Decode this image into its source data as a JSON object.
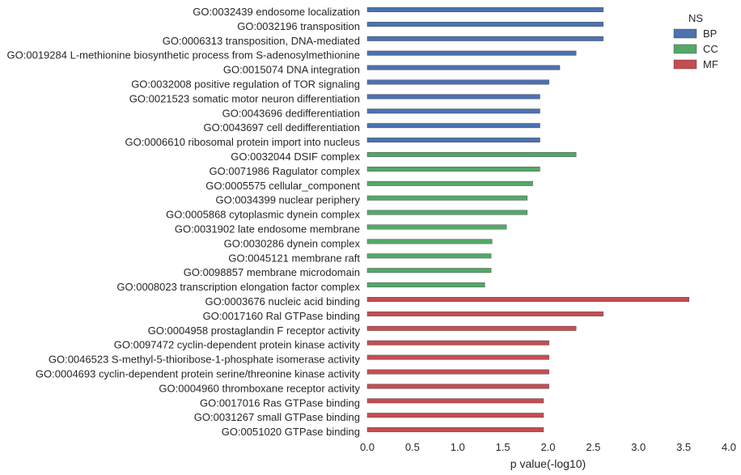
{
  "chart_data": {
    "type": "bar",
    "orientation": "horizontal",
    "xlabel": "p value(-log10)",
    "xlim": [
      0,
      4
    ],
    "xticks": [
      "0.0",
      "0.5",
      "1.0",
      "1.5",
      "2.0",
      "2.5",
      "3.0",
      "3.5",
      "4.0"
    ],
    "grid": false,
    "legend": {
      "title": "NS",
      "placement": "top-right",
      "entries": [
        {
          "name": "BP",
          "color": "#4c72b0"
        },
        {
          "name": "CC",
          "color": "#55a868"
        },
        {
          "name": "MF",
          "color": "#c44e52"
        }
      ]
    },
    "categories": [
      {
        "label": "GO:0032439 endosome localization",
        "value": 2.61,
        "ns": "BP"
      },
      {
        "label": "GO:0032196 transposition",
        "value": 2.61,
        "ns": "BP"
      },
      {
        "label": "GO:0006313 transposition, DNA-mediated",
        "value": 2.61,
        "ns": "BP"
      },
      {
        "label": "GO:0019284 L-methionine biosynthetic process from S-adenosylmethionine",
        "value": 2.31,
        "ns": "BP"
      },
      {
        "label": "GO:0015074 DNA integration",
        "value": 2.13,
        "ns": "BP"
      },
      {
        "label": "GO:0032008 positive regulation of TOR signaling",
        "value": 2.01,
        "ns": "BP"
      },
      {
        "label": "GO:0021523 somatic motor neuron differentiation",
        "value": 1.91,
        "ns": "BP"
      },
      {
        "label": "GO:0043696 dedifferentiation",
        "value": 1.91,
        "ns": "BP"
      },
      {
        "label": "GO:0043697 cell dedifferentiation",
        "value": 1.91,
        "ns": "BP"
      },
      {
        "label": "GO:0006610 ribosomal protein import into nucleus",
        "value": 1.91,
        "ns": "BP"
      },
      {
        "label": "GO:0032044 DSIF complex",
        "value": 2.31,
        "ns": "CC"
      },
      {
        "label": "GO:0071986 Ragulator complex",
        "value": 1.91,
        "ns": "CC"
      },
      {
        "label": "GO:0005575 cellular_component",
        "value": 1.83,
        "ns": "CC"
      },
      {
        "label": "GO:0034399 nuclear periphery",
        "value": 1.77,
        "ns": "CC"
      },
      {
        "label": "GO:0005868 cytoplasmic dynein complex",
        "value": 1.77,
        "ns": "CC"
      },
      {
        "label": "GO:0031902 late endosome membrane",
        "value": 1.54,
        "ns": "CC"
      },
      {
        "label": "GO:0030286 dynein complex",
        "value": 1.38,
        "ns": "CC"
      },
      {
        "label": "GO:0045121 membrane raft",
        "value": 1.37,
        "ns": "CC"
      },
      {
        "label": "GO:0098857 membrane microdomain",
        "value": 1.37,
        "ns": "CC"
      },
      {
        "label": "GO:0008023 transcription elongation factor complex",
        "value": 1.3,
        "ns": "CC"
      },
      {
        "label": "GO:0003676 nucleic acid binding",
        "value": 3.56,
        "ns": "MF"
      },
      {
        "label": "GO:0017160 Ral GTPase binding",
        "value": 2.61,
        "ns": "MF"
      },
      {
        "label": "GO:0004958 prostaglandin F receptor activity",
        "value": 2.31,
        "ns": "MF"
      },
      {
        "label": "GO:0097472 cyclin-dependent protein kinase activity",
        "value": 2.01,
        "ns": "MF"
      },
      {
        "label": "GO:0046523 S-methyl-5-thioribose-1-phosphate isomerase activity",
        "value": 2.01,
        "ns": "MF"
      },
      {
        "label": "GO:0004693 cyclin-dependent protein serine/threonine kinase activity",
        "value": 2.01,
        "ns": "MF"
      },
      {
        "label": "GO:0004960 thromboxane receptor activity",
        "value": 2.01,
        "ns": "MF"
      },
      {
        "label": "GO:0017016 Ras GTPase binding",
        "value": 1.95,
        "ns": "MF"
      },
      {
        "label": "GO:0031267 small GTPase binding",
        "value": 1.95,
        "ns": "MF"
      },
      {
        "label": "GO:0051020 GTPase binding",
        "value": 1.95,
        "ns": "MF"
      }
    ]
  }
}
